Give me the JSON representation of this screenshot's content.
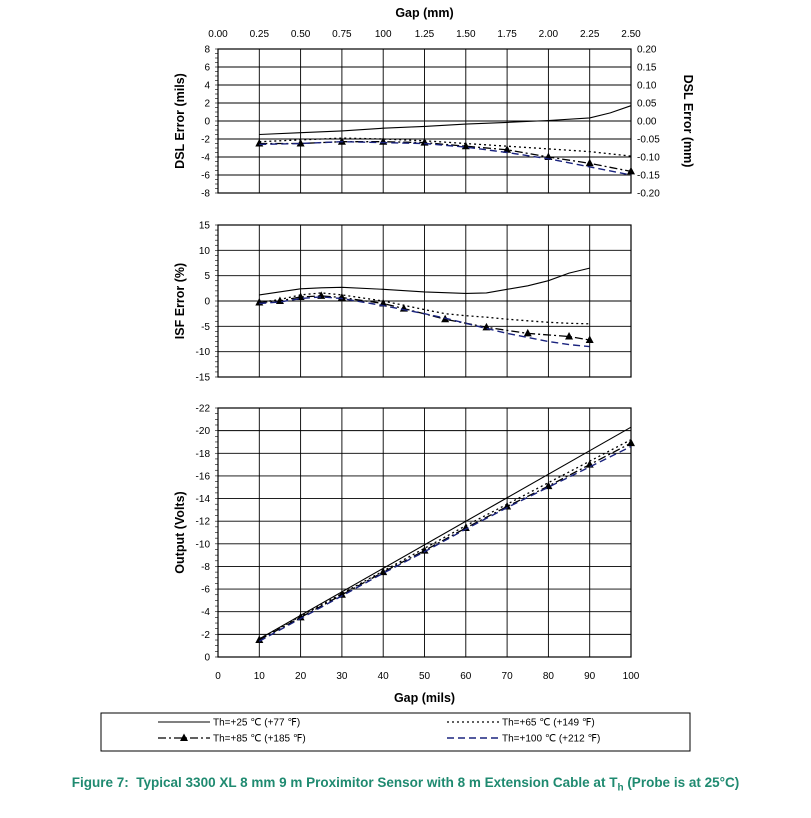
{
  "caption": {
    "label": "Figure 7:",
    "text_before": "Typical 3300 XL 8 mm 9 m Proximitor Sensor with 8 m Extension Cable at T",
    "subscript": "h",
    "text_after": "(Probe is at 25°C)"
  },
  "legend": [
    {
      "name": "Th=+25 °C (+77 °F)",
      "label": "Th=+25 ℃ (+77 ℉)",
      "color": "#000000"
    },
    {
      "name": "Th=+65 °C (+149 °F)",
      "label": "Th=+65 ℃ (+149 ℉)",
      "color": "#000000"
    },
    {
      "name": "Th=+85 °C (+185 °F)",
      "label": "Th=+85 ℃ (+185 ℉)",
      "color": "#000000"
    },
    {
      "name": "Th=+100 °C (+212 °F)",
      "label": "Th=+100 ℃ (+212 ℉)",
      "color": "#1a237e"
    }
  ],
  "chart_data": [
    {
      "type": "line",
      "id": "dsl",
      "title": "",
      "top_xlabel": "Gap (mm)",
      "top_xticks": [
        "0.00",
        "0.25",
        "0.50",
        "0.75",
        "100",
        "1.25",
        "1.50",
        "1.75",
        "2.00",
        "2.25",
        "2.50"
      ],
      "ylabel": "DSL Error (mils)",
      "y2label": "DSL Error (mm)",
      "xlim": [
        0,
        100
      ],
      "ylim": [
        -8,
        8
      ],
      "yticks": [
        "-8",
        "-6",
        "-4",
        "-2",
        "0",
        "2",
        "4",
        "6",
        "8"
      ],
      "y2ticks": [
        "-0.20",
        "-0.15",
        "-0.10",
        "-0.05",
        "0.00",
        "0.05",
        "0.10",
        "0.15",
        "0.20"
      ],
      "series": [
        {
          "name": "Th=+25 °C (+77 °F)",
          "x": [
            10,
            20,
            30,
            40,
            50,
            60,
            70,
            80,
            90,
            95,
            100
          ],
          "y": [
            -1.5,
            -1.3,
            -1.1,
            -0.8,
            -0.6,
            -0.35,
            -0.15,
            0.05,
            0.35,
            0.9,
            1.7
          ]
        },
        {
          "name": "Th=+65 °C (+149 °F)",
          "x": [
            10,
            20,
            30,
            40,
            50,
            60,
            70,
            80,
            90,
            100
          ],
          "y": [
            -2.3,
            -2.1,
            -1.9,
            -2.0,
            -2.2,
            -2.5,
            -2.8,
            -3.1,
            -3.4,
            -3.9
          ]
        },
        {
          "name": "Th=+85 °C (+185 °F)",
          "x": [
            10,
            20,
            30,
            40,
            50,
            60,
            70,
            80,
            90,
            100
          ],
          "y": [
            -2.5,
            -2.5,
            -2.3,
            -2.3,
            -2.4,
            -2.8,
            -3.2,
            -4.0,
            -4.7,
            -5.6
          ]
        },
        {
          "name": "Th=+100 °C (+212 °F)",
          "x": [
            10,
            20,
            30,
            40,
            50,
            60,
            70,
            80,
            90,
            100
          ],
          "y": [
            -2.6,
            -2.5,
            -2.3,
            -2.4,
            -2.5,
            -2.9,
            -3.5,
            -4.2,
            -5.1,
            -6.0
          ]
        }
      ]
    },
    {
      "type": "line",
      "id": "isf",
      "title": "",
      "ylabel": "ISF Error (%)",
      "xlim": [
        0,
        100
      ],
      "ylim": [
        -15,
        15
      ],
      "yticks": [
        "-15",
        "-10",
        "-5",
        "0",
        "5",
        "10",
        "15"
      ],
      "series": [
        {
          "name": "Th=+25 °C (+77 °F)",
          "x": [
            10,
            20,
            25,
            30,
            40,
            50,
            60,
            65,
            70,
            75,
            80,
            85,
            90
          ],
          "y": [
            1.2,
            2.4,
            2.6,
            2.7,
            2.3,
            1.8,
            1.5,
            1.6,
            2.3,
            3.0,
            4.0,
            5.5,
            6.5
          ]
        },
        {
          "name": "Th=+65 °C (+149 °F)",
          "x": [
            10,
            15,
            20,
            25,
            30,
            40,
            50,
            55,
            60,
            65,
            70,
            75,
            80,
            85,
            90
          ],
          "y": [
            -0.3,
            0.3,
            1.2,
            1.6,
            1.2,
            0.0,
            -1.7,
            -2.5,
            -2.9,
            -3.2,
            -3.6,
            -3.9,
            -4.2,
            -4.4,
            -4.5
          ]
        },
        {
          "name": "Th=+85 °C (+185 °F)",
          "x": [
            10,
            15,
            20,
            25,
            30,
            40,
            45,
            55,
            65,
            75,
            85,
            90
          ],
          "y": [
            -0.3,
            0.0,
            0.8,
            1.0,
            0.7,
            -0.5,
            -1.5,
            -3.6,
            -5.2,
            -6.4,
            -7.0,
            -7.7
          ]
        },
        {
          "name": "Th=+100 °C (+212 °F)",
          "x": [
            10,
            15,
            20,
            25,
            30,
            40,
            50,
            55,
            60,
            65,
            70,
            75,
            80,
            85,
            90
          ],
          "y": [
            -0.5,
            -0.2,
            0.5,
            0.8,
            0.5,
            -0.9,
            -2.5,
            -3.4,
            -4.4,
            -5.4,
            -6.4,
            -7.2,
            -8.0,
            -8.6,
            -9.0
          ]
        }
      ]
    },
    {
      "type": "line",
      "id": "output",
      "title": "",
      "xlabel": "Gap (mils)",
      "ylabel": "Output (Volts)",
      "xlim": [
        0,
        100
      ],
      "ylim": [
        0,
        -22
      ],
      "xticks": [
        "0",
        "10",
        "20",
        "30",
        "40",
        "50",
        "60",
        "70",
        "80",
        "90",
        "100"
      ],
      "yticks": [
        "0",
        "-2",
        "-4",
        "-6",
        "-8",
        "-10",
        "-12",
        "-14",
        "-16",
        "-18",
        "-20",
        "-22"
      ],
      "series": [
        {
          "name": "Th=+25 °C (+77 °F)",
          "x": [
            10,
            100
          ],
          "y": [
            -1.6,
            -20.3
          ]
        },
        {
          "name": "Th=+65 °C (+149 °F)",
          "x": [
            10,
            20,
            30,
            40,
            50,
            60,
            70,
            80,
            90,
            100
          ],
          "y": [
            -1.6,
            -3.6,
            -5.6,
            -7.6,
            -9.6,
            -11.6,
            -13.5,
            -15.4,
            -17.3,
            -19.2
          ]
        },
        {
          "name": "Th=+85 °C (+185 °F)",
          "x": [
            10,
            20,
            30,
            40,
            50,
            60,
            70,
            80,
            90,
            100
          ],
          "y": [
            -1.5,
            -3.5,
            -5.5,
            -7.5,
            -9.4,
            -11.4,
            -13.3,
            -15.1,
            -17.0,
            -18.9
          ]
        },
        {
          "name": "Th=+100 °C (+212 °F)",
          "x": [
            10,
            20,
            30,
            40,
            50,
            60,
            70,
            80,
            90,
            100
          ],
          "y": [
            -1.4,
            -3.4,
            -5.4,
            -7.4,
            -9.3,
            -11.3,
            -13.2,
            -15.0,
            -16.8,
            -18.6
          ]
        }
      ]
    }
  ]
}
